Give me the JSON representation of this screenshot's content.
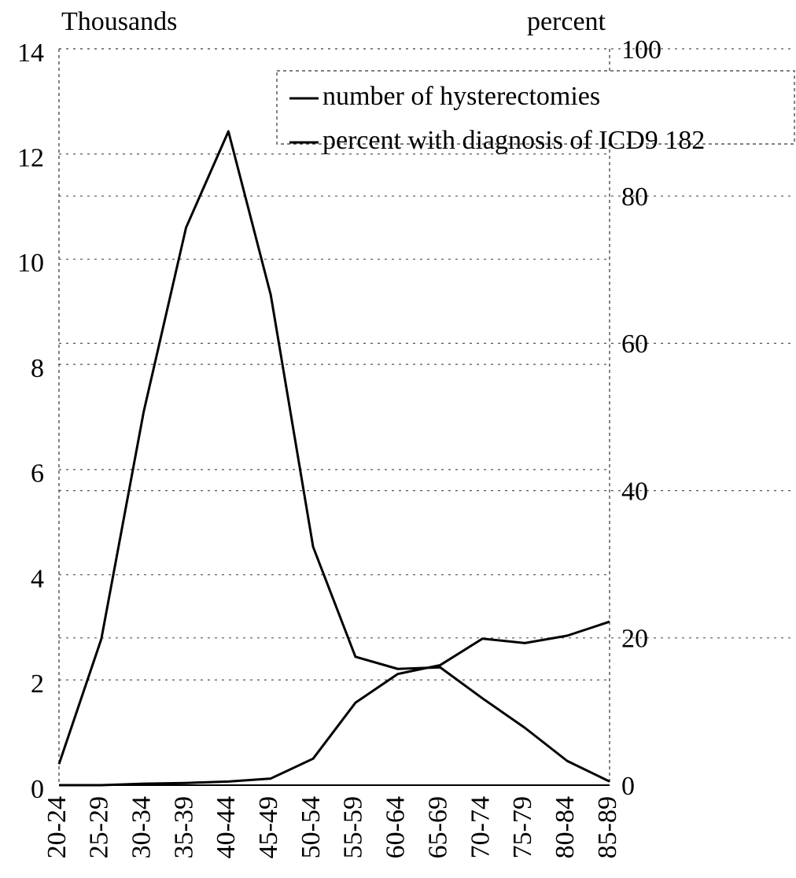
{
  "chart_data": {
    "type": "line",
    "y_label": "Thousands",
    "y2_label": "percent",
    "categories": [
      "20-24",
      "25-29",
      "30-34",
      "35-39",
      "40-44",
      "45-49",
      "50-54",
      "55-59",
      "60-64",
      "65-69",
      "70-74",
      "75-79",
      "80-84",
      "85-89"
    ],
    "series": [
      {
        "name": "number of hysterectomies",
        "color": "#000000",
        "values": [
          0.4,
          2.78,
          7.1,
          10.6,
          12.43,
          9.32,
          4.53,
          2.44,
          2.21,
          2.24,
          1.65,
          1.09,
          0.46,
          0.07
        ]
      },
      {
        "name": "percent with diagnosis of ICD9 182",
        "color": "#000000",
        "axis": "y2",
        "values": [
          0,
          0,
          0.2,
          0.3,
          0.5,
          0.9,
          3.6,
          11.2,
          15.1,
          16.3,
          19.9,
          19.3,
          20.3,
          22.2
        ]
      }
    ],
    "ylim": [
      0,
      14
    ],
    "yticks": [
      0,
      2,
      4,
      6,
      8,
      10,
      12,
      14
    ],
    "y2lim": [
      0,
      100
    ],
    "y2ticks": [
      0,
      20,
      40,
      60,
      80,
      100
    ],
    "grid": true
  }
}
